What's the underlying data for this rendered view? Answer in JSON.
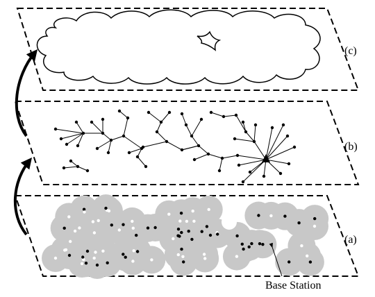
{
  "layers": {
    "top": {
      "label": "(c)"
    },
    "middle": {
      "label": "(b)"
    },
    "bottom": {
      "label": "(a)"
    }
  },
  "annotation": {
    "base_station": "Base Station"
  }
}
